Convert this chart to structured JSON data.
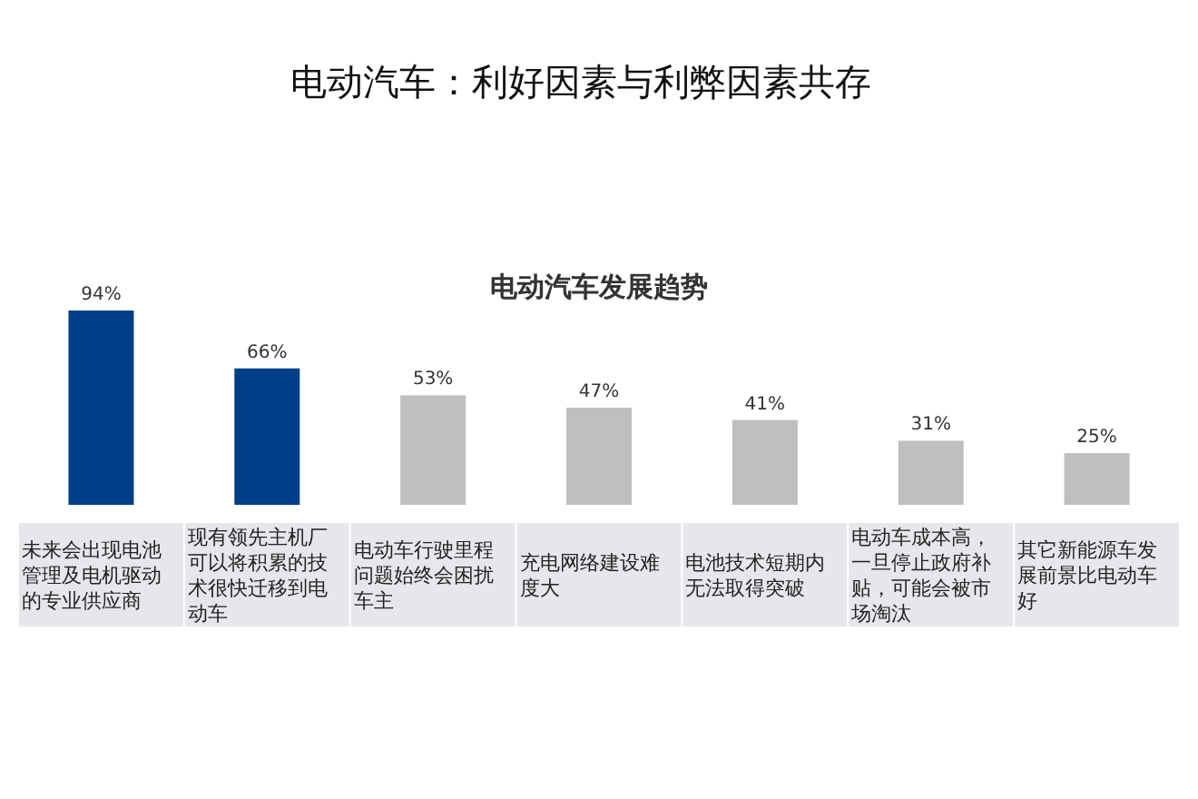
{
  "chart_data": {
    "type": "bar",
    "title": "电动汽车：利好因素与利弊因素共存",
    "subtitle": "电动汽车发展趋势",
    "categories": [
      "未来会出现电池管理及电机驱动的专业供应商",
      "现有领先主机厂可以将积累的技术很快迁移到电动车",
      "电动车行驶里程问题始终会困扰车主",
      "充电网络建设难度大",
      "电池技术短期内无法取得突破",
      "电动车成本高，一旦停止政府补贴，可能会被市场淘汰",
      "其它新能源车发展前景比电动车好"
    ],
    "values": [
      94,
      66,
      53,
      47,
      41,
      31,
      25
    ],
    "value_labels": [
      "94%",
      "66%",
      "53%",
      "47%",
      "41%",
      "31%",
      "25%"
    ],
    "colors": [
      "#003f87",
      "#003f87",
      "#bfbfbf",
      "#bfbfbf",
      "#bfbfbf",
      "#bfbfbf",
      "#bfbfbf"
    ]
  }
}
